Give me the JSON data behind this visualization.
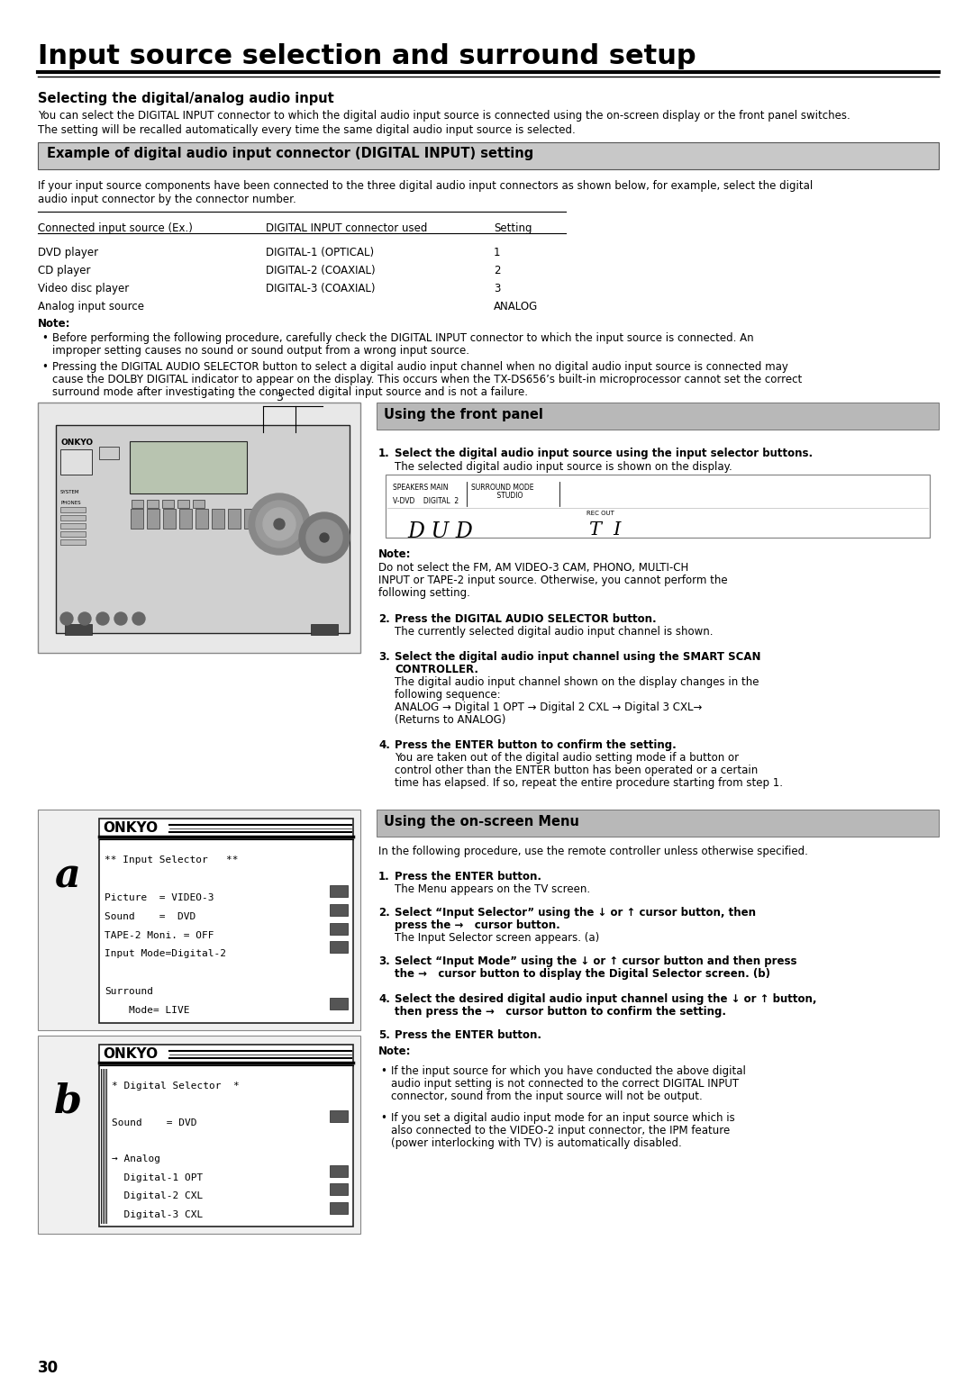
{
  "title": "Input source selection and surround setup",
  "section_title": "Selecting the digital/analog audio input",
  "intro1": "You can select the DIGITAL INPUT connector to which the digital audio input source is connected using the on-screen display or the front panel switches.",
  "intro2": "The setting will be recalled automatically every time the same digital audio input source is selected.",
  "example_title": "Example of digital audio input connector (DIGITAL INPUT) setting",
  "example_p1": "If your input source components have been connected to the three digital audio input connectors as shown below, for example, select the digital",
  "example_p2": "audio input connector by the connector number.",
  "th1": "Connected input source (Ex.)",
  "th2": "DIGITAL INPUT connector used",
  "th3": "Setting",
  "rows": [
    [
      "DVD player",
      "DIGITAL-1 (OPTICAL)",
      "1"
    ],
    [
      "CD player",
      "DIGITAL-2 (COAXIAL)",
      "2"
    ],
    [
      "Video disc player",
      "DIGITAL-3 (COAXIAL)",
      "3"
    ],
    [
      "Analog input source",
      "",
      "ANALOG"
    ]
  ],
  "note_hdr": "Note:",
  "note1a": "Before performing the following procedure, carefully check the DIGITAL INPUT connector to which the input source is connected. An",
  "note1b": "improper setting causes no sound or sound output from a wrong input source.",
  "note2a": "Pressing the DIGITAL AUDIO SELECTOR button to select a digital audio input channel when no digital audio input source is connected may",
  "note2b": "cause the DOLBY DIGITAL indicator to appear on the display. This occurs when the TX-DS656’s built-in microprocessor cannot set the correct",
  "note2c": "surround mode after investigating the connected digital input source and is not a failure.",
  "fp_title": "Using the front panel",
  "fp1b": "Select the digital audio input source using the input selector buttons.",
  "fp1n": "The selected digital audio input source is shown on the display.",
  "dn_hdr": "Note:",
  "dn1": "Do not select the FM, AM VIDEO-3 CAM, PHONO, MULTI-CH",
  "dn2": "INPUT or TAPE-2 input source. Otherwise, you cannot perform the",
  "dn3": "following setting.",
  "fp2b": "Press the DIGITAL AUDIO SELECTOR button.",
  "fp2n": "The currently selected digital audio input channel is shown.",
  "fp3b1": "Select the digital audio input channel using the SMART SCAN",
  "fp3b2": "CONTROLLER.",
  "fp3n1": "The digital audio input channel shown on the display changes in the",
  "fp3n2": "following sequence:",
  "fp3n3": "ANALOG → Digital 1 OPT → Digital 2 CXL → Digital 3 CXL→",
  "fp3n4": "(Returns to ANALOG)",
  "fp4b": "Press the ENTER button to confirm the setting.",
  "fp4n1": "You are taken out of the digital audio setting mode if a button or",
  "fp4n2": "control other than the ENTER button has been operated or a certain",
  "fp4n3": "time has elapsed. If so, repeat the entire procedure starting from step 1.",
  "os_title": "Using the on-screen Menu",
  "os_intro": "In the following procedure, use the remote controller unless otherwise specified.",
  "os1b": "Press the ENTER button.",
  "os1n": "The Menu appears on the TV screen.",
  "os2b1": "Select “Input Selector” using the ↓ or ↑ cursor button, then",
  "os2b2": "press the →   cursor button.",
  "os2n": "The Input Selector screen appears. (a)",
  "os3b1": "Select “Input Mode” using the ↓ or ↑ cursor button and then press",
  "os3b2": "the →   cursor button to display the Digital Selector screen. (b)",
  "os4b1": "Select the desired digital audio input channel using the ↓ or ↑ button,",
  "os4b2": "then press the →   cursor button to confirm the setting.",
  "os5b": "Press the ENTER button.",
  "osn_hdr": "Note:",
  "osn1a": "If the input source for which you have conducted the above digital",
  "osn1b": "audio input setting is not connected to the correct DIGITAL INPUT",
  "osn1c": "connector, sound from the input source will not be output.",
  "osn2a": "If you set a digital audio input mode for an input source which is",
  "osn2b": "also connected to the VIDEO-2 input connector, the IPM feature",
  "osn2c": "(power interlocking with TV) is automatically disabled.",
  "sa1": "** Input Selector   **",
  "sa2": "",
  "sa3": "Picture  = VIDEO-3",
  "sa4": "Sound    =  DVD",
  "sa5": "TAPE-2 Moni. = OFF",
  "sa6": "Input Mode=Digital-2",
  "sa7": "",
  "sa8": "Surround",
  "sa9": "    Mode= LIVE",
  "sb1": "* Digital Selector  *",
  "sb2": "",
  "sb3": "Sound    = DVD",
  "sb4": "",
  "sb5": "→ Analog",
  "sb6": "  Digital-1 OPT",
  "sb7": "  Digital-2 CXL",
  "sb8": "  Digital-3 CXL",
  "page": "30",
  "bg": "#ffffff",
  "ex_bg": "#c8c8c8",
  "panel_bg": "#b8b8b8",
  "imgbox_bg": "#e8e8e8",
  "imgbox_border": "#888888",
  "screen_border": "#333333"
}
